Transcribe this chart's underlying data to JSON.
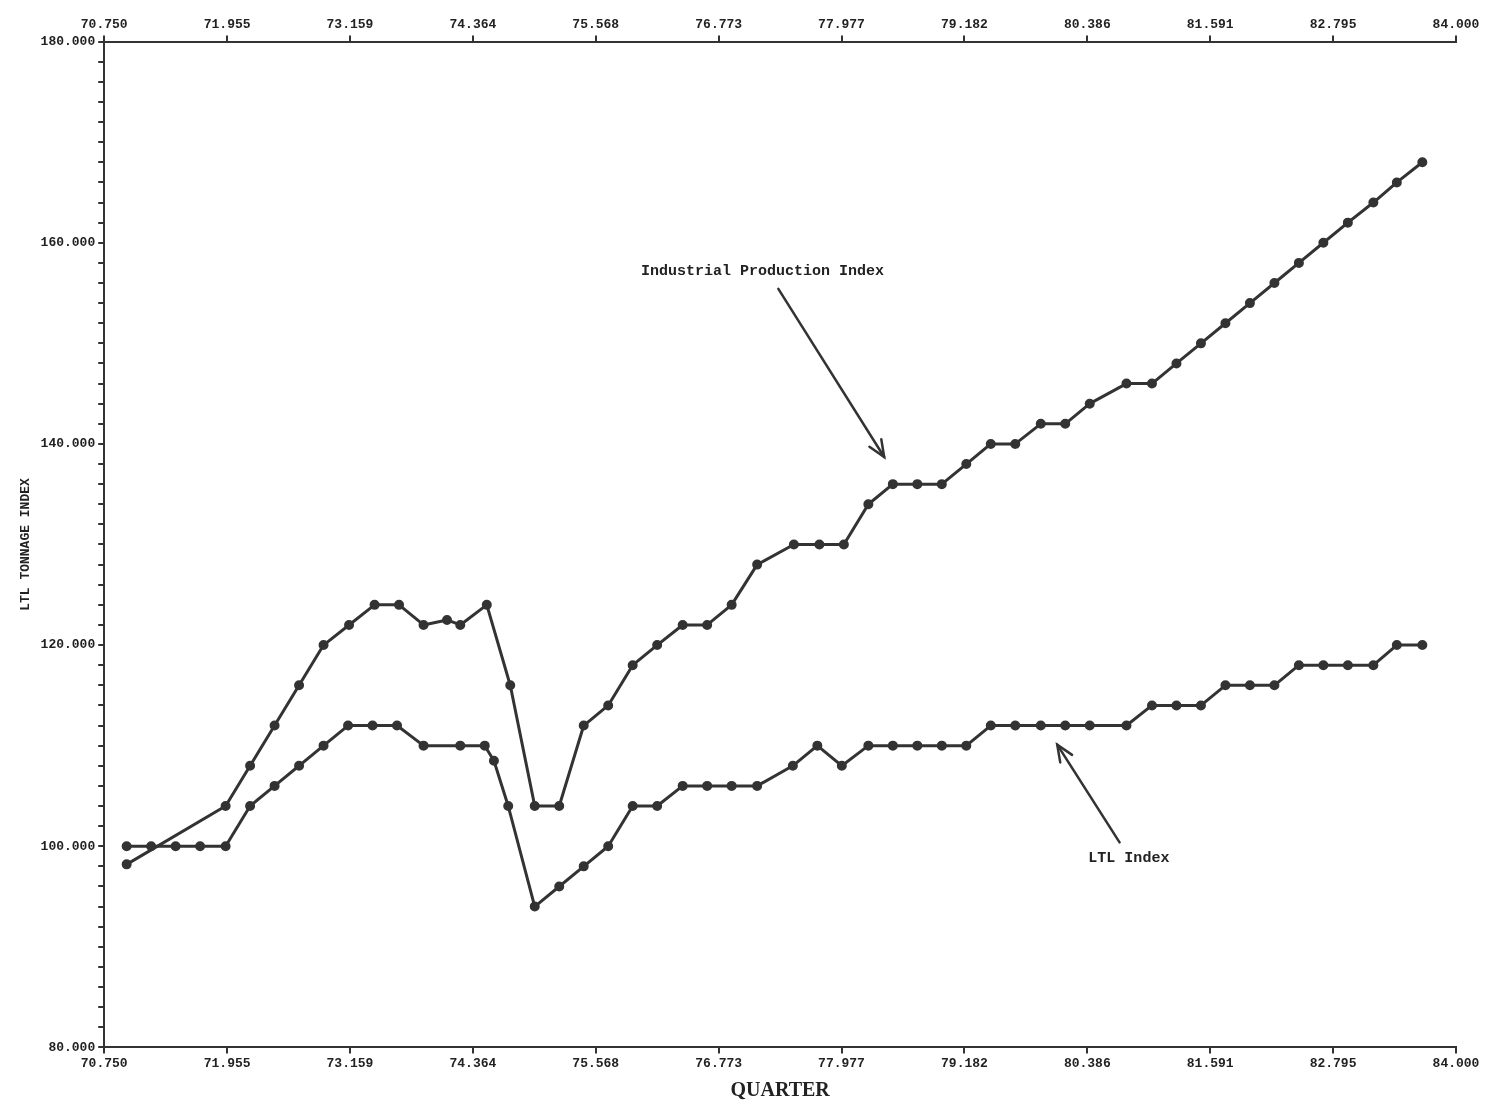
{
  "chart_data": {
    "type": "line",
    "xlabel": "QUARTER",
    "ylabel": "LTL TONNAGE INDEX",
    "xlim": [
      70.75,
      84
    ],
    "xticks": [
      {
        "value": 70.75,
        "label": "70.750"
      },
      {
        "value": 71.955,
        "label": "71.955"
      },
      {
        "value": 73.159,
        "label": "73.159"
      },
      {
        "value": 74.364,
        "label": "74.364"
      },
      {
        "value": 75.568,
        "label": "75.568"
      },
      {
        "value": 76.773,
        "label": "76.773"
      },
      {
        "value": 77.977,
        "label": "77.977"
      },
      {
        "value": 79.182,
        "label": "79.182"
      },
      {
        "value": 80.386,
        "label": "80.386"
      },
      {
        "value": 81.591,
        "label": "81.591"
      },
      {
        "value": 82.795,
        "label": "82.795"
      },
      {
        "value": 84,
        "label": "84.000"
      }
    ],
    "x2lim": [
      70.75,
      84
    ],
    "x2ticks": [
      {
        "value": 70.75,
        "label": "70.750"
      },
      {
        "value": 71.955,
        "label": "71.955"
      },
      {
        "value": 73.159,
        "label": "73.159"
      },
      {
        "value": 74.364,
        "label": "74.364"
      },
      {
        "value": 75.568,
        "label": "75.568"
      },
      {
        "value": 76.773,
        "label": "76.773"
      },
      {
        "value": 77.977,
        "label": "77.977"
      },
      {
        "value": 79.182,
        "label": "79.182"
      },
      {
        "value": 80.386,
        "label": "80.386"
      },
      {
        "value": 81.591,
        "label": "81.591"
      },
      {
        "value": 82.795,
        "label": "82.795"
      },
      {
        "value": 84,
        "label": "84.000"
      }
    ],
    "ylim": [
      80,
      180
    ],
    "yticks": [
      {
        "value": 80,
        "label": "80.000"
      },
      {
        "value": 82,
        "label": null
      },
      {
        "value": 84,
        "label": null
      },
      {
        "value": 86,
        "label": null
      },
      {
        "value": 88,
        "label": null
      },
      {
        "value": 90,
        "label": null
      },
      {
        "value": 92,
        "label": null
      },
      {
        "value": 94,
        "label": null
      },
      {
        "value": 96,
        "label": null
      },
      {
        "value": 98,
        "label": null
      },
      {
        "value": 100,
        "label": "100.000"
      },
      {
        "value": 102,
        "label": null
      },
      {
        "value": 104,
        "label": null
      },
      {
        "value": 106,
        "label": null
      },
      {
        "value": 108,
        "label": null
      },
      {
        "value": 110,
        "label": null
      },
      {
        "value": 112,
        "label": null
      },
      {
        "value": 114,
        "label": null
      },
      {
        "value": 116,
        "label": null
      },
      {
        "value": 118,
        "label": null
      },
      {
        "value": 120,
        "label": "120.000"
      },
      {
        "value": 122,
        "label": null
      },
      {
        "value": 124,
        "label": null
      },
      {
        "value": 126,
        "label": null
      },
      {
        "value": 128,
        "label": null
      },
      {
        "value": 130,
        "label": null
      },
      {
        "value": 132,
        "label": null
      },
      {
        "value": 134,
        "label": null
      },
      {
        "value": 136,
        "label": null
      },
      {
        "value": 138,
        "label": null
      },
      {
        "value": 140,
        "label": "140.000"
      },
      {
        "value": 142,
        "label": null
      },
      {
        "value": 144,
        "label": null
      },
      {
        "value": 146,
        "label": null
      },
      {
        "value": 148,
        "label": null
      },
      {
        "value": 150,
        "label": null
      },
      {
        "value": 152,
        "label": null
      },
      {
        "value": 154,
        "label": null
      },
      {
        "value": 156,
        "label": null
      },
      {
        "value": 158,
        "label": null
      },
      {
        "value": 160,
        "label": "160.000"
      },
      {
        "value": 162,
        "label": null
      },
      {
        "value": 164,
        "label": null
      },
      {
        "value": 166,
        "label": null
      },
      {
        "value": 168,
        "label": null
      },
      {
        "value": 170,
        "label": null
      },
      {
        "value": 172,
        "label": null
      },
      {
        "value": 174,
        "label": null
      },
      {
        "value": 176,
        "label": null
      },
      {
        "value": 178,
        "label": null
      },
      {
        "value": 180,
        "label": "180.000"
      }
    ],
    "grid": false,
    "legend": false,
    "marker": "circle",
    "line_style": "solid",
    "series": [
      {
        "color": "#333333",
        "x": [
          70.97,
          71.94,
          72.18,
          72.42,
          72.66,
          72.9,
          73.15,
          73.4,
          73.64,
          73.88,
          74.11,
          74.24,
          74.5,
          74.73,
          74.97,
          75.21,
          75.45,
          75.69,
          75.93,
          76.17,
          76.42,
          76.66,
          76.9,
          77.15,
          77.51,
          77.76,
          78.0,
          78.24,
          78.48,
          78.72,
          78.96,
          79.2,
          79.44,
          79.68,
          79.93,
          80.17,
          80.41,
          80.77,
          81.02,
          81.26,
          81.5,
          81.74,
          81.98,
          82.22,
          82.46,
          82.7,
          82.94,
          83.19,
          83.42,
          83.67
        ],
        "values": [
          98.2,
          104,
          108,
          112,
          116,
          120,
          122,
          124,
          124,
          122,
          122.5,
          122,
          124,
          116,
          104,
          104,
          112,
          114,
          118,
          120,
          122,
          122,
          124,
          128,
          130,
          130,
          130,
          134,
          136,
          136,
          136,
          138,
          140,
          140,
          142,
          142,
          144,
          146,
          146,
          148,
          150,
          152,
          154,
          156,
          158,
          160,
          162,
          164,
          166,
          168
        ]
      },
      {
        "color": "#333333",
        "x": [
          70.97,
          71.21,
          71.45,
          71.69,
          71.94,
          72.18,
          72.42,
          72.66,
          72.9,
          73.14,
          73.38,
          73.62,
          73.88,
          74.24,
          74.48,
          74.57,
          74.71,
          74.97,
          75.21,
          75.45,
          75.69,
          75.93,
          76.17,
          76.42,
          76.66,
          76.9,
          77.15,
          77.5,
          77.74,
          77.98,
          78.24,
          78.48,
          78.72,
          78.96,
          79.2,
          79.44,
          79.68,
          79.93,
          80.17,
          80.41,
          80.77,
          81.02,
          81.26,
          81.5,
          81.74,
          81.98,
          82.22,
          82.46,
          82.7,
          82.94,
          83.19,
          83.42,
          83.67
        ],
        "values": [
          100,
          100,
          100,
          100,
          100,
          104,
          106,
          108,
          110,
          112,
          112,
          112,
          110,
          110,
          110,
          108.5,
          104,
          94,
          96,
          98,
          100,
          104,
          104,
          106,
          106,
          106,
          106,
          108,
          110,
          108,
          110,
          110,
          110,
          110,
          110,
          112,
          112,
          112,
          112,
          112,
          112,
          114,
          114,
          114,
          116,
          116,
          116,
          118,
          118,
          118,
          118,
          120,
          120
        ]
      }
    ],
    "annotations": [
      "Industrial Production Index",
      "LTL Index"
    ]
  }
}
